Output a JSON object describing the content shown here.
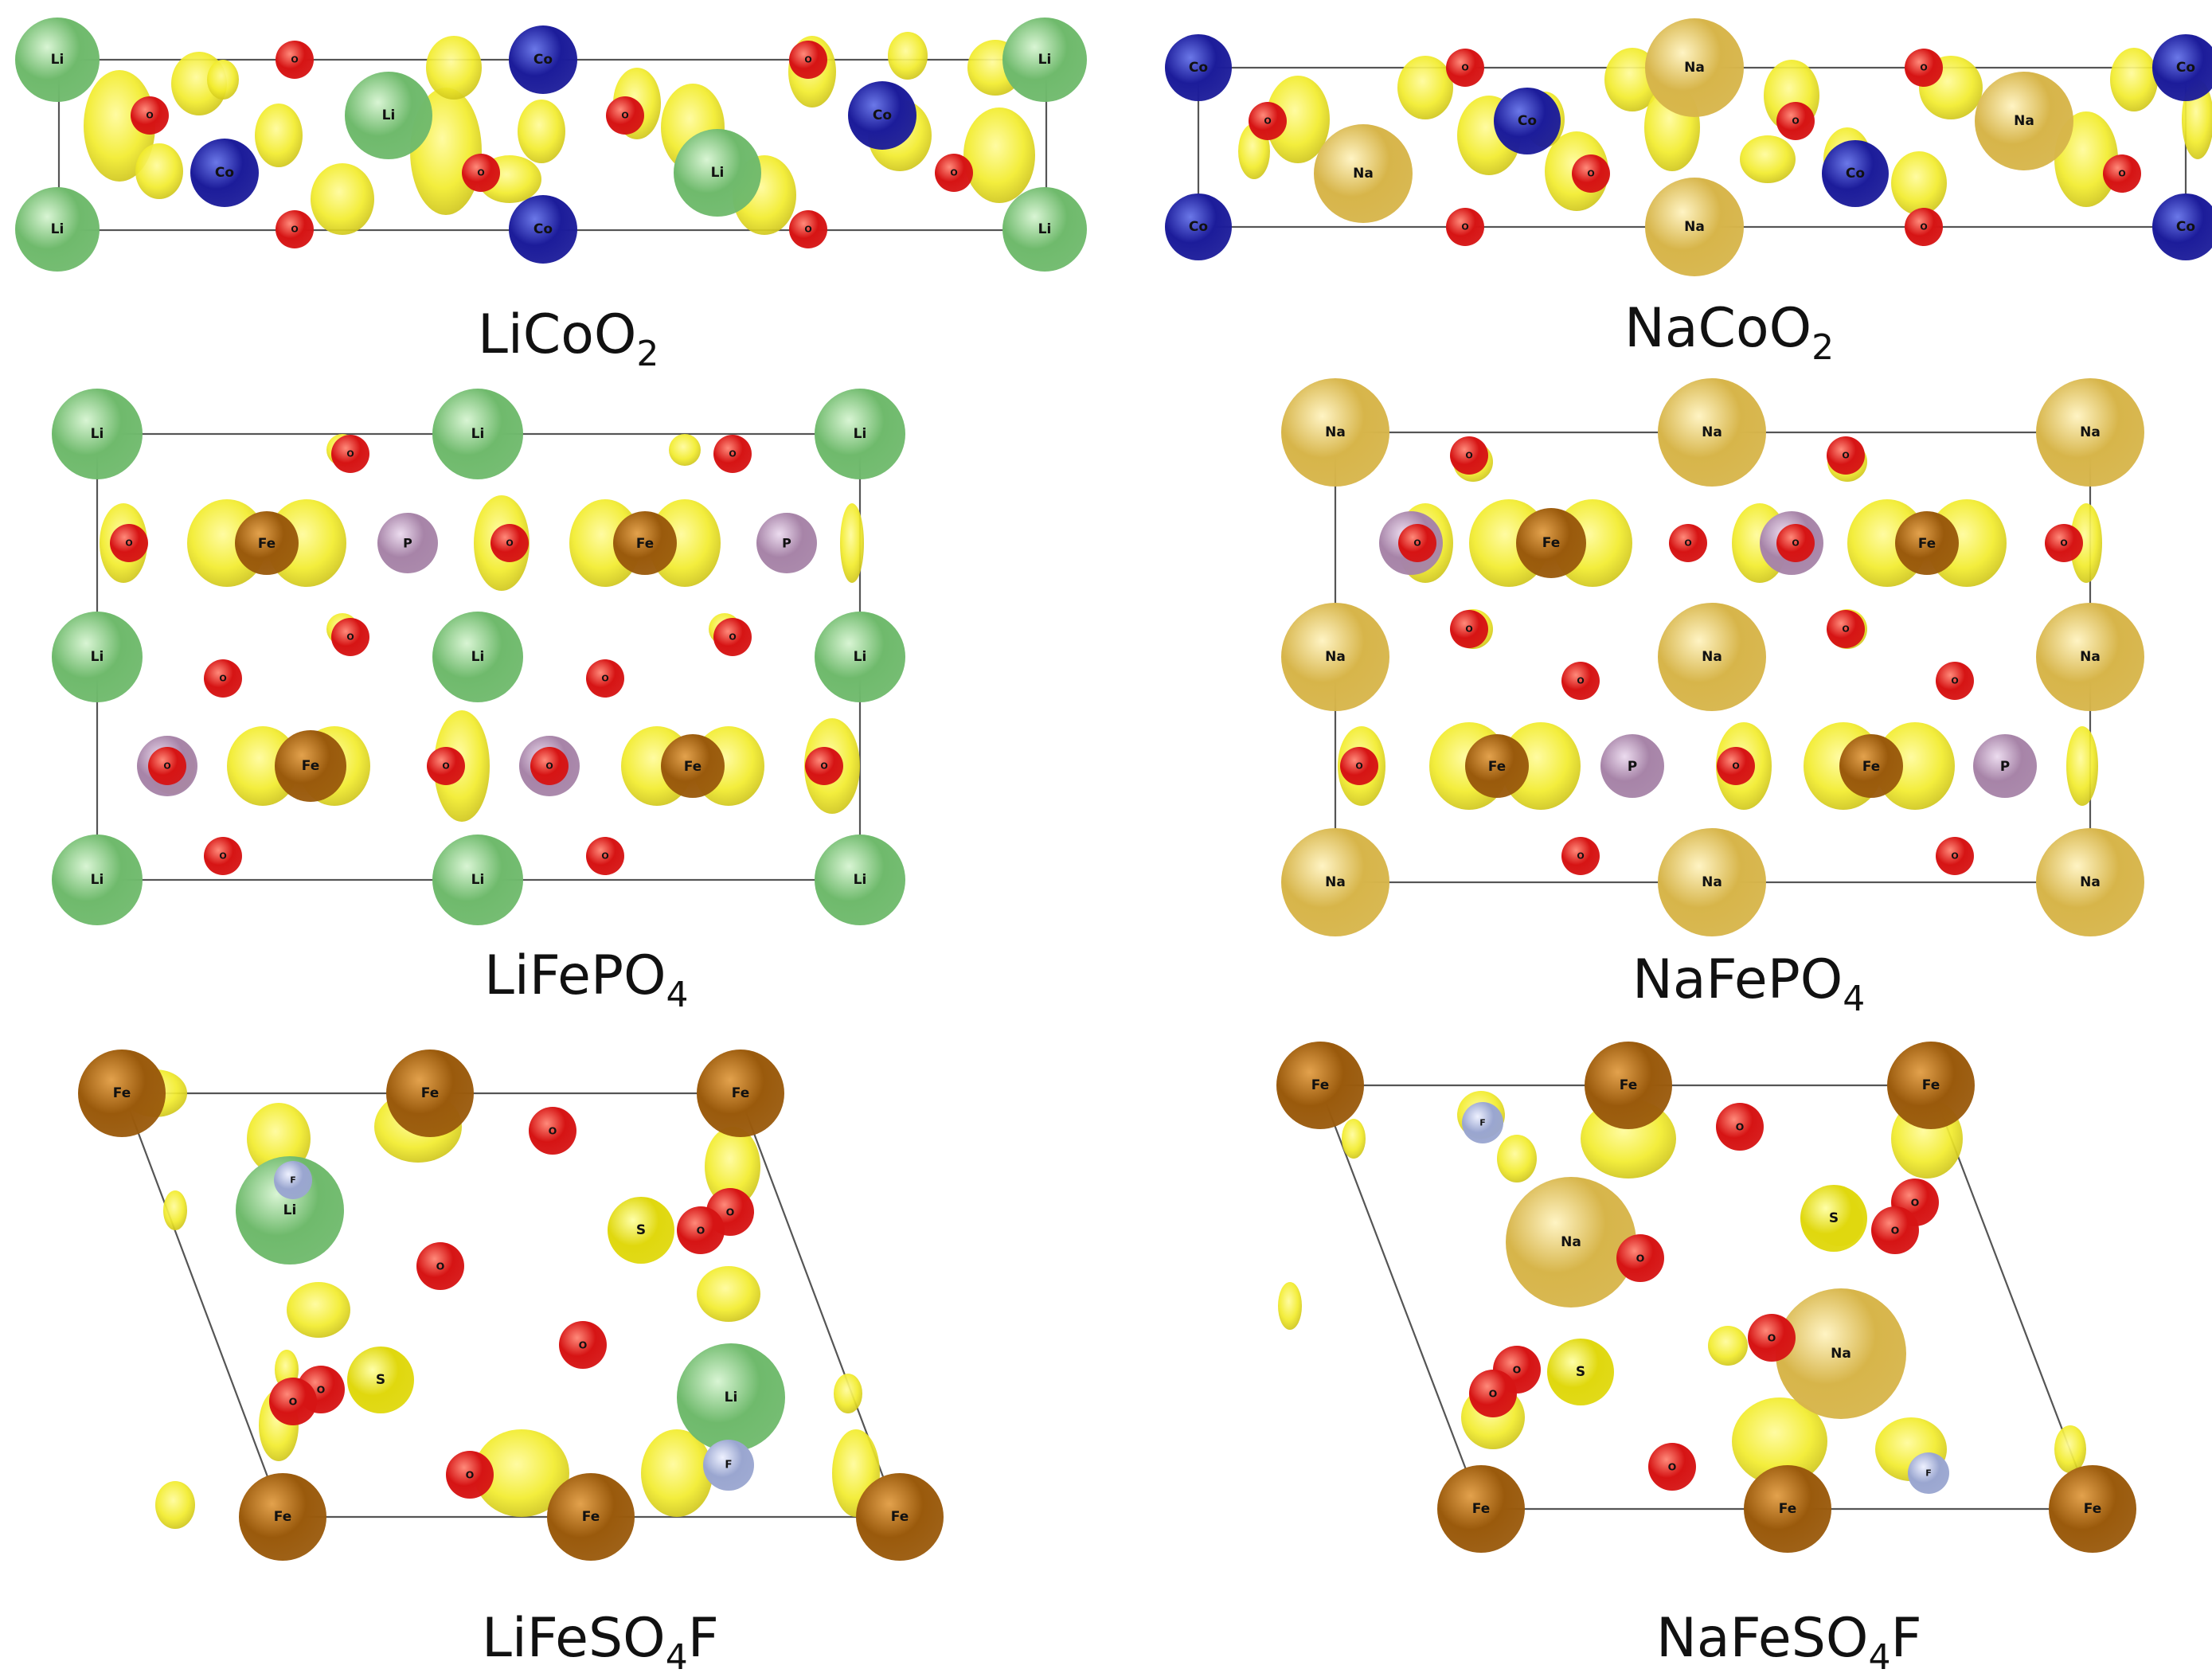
{
  "panels": [
    {
      "id": "licoo2",
      "formula": {
        "base": "LiCoO",
        "sub": "2",
        "tail": ""
      }
    },
    {
      "id": "nacoo2",
      "formula": {
        "base": "NaCoO",
        "sub": "2",
        "tail": ""
      }
    },
    {
      "id": "lifepo4",
      "formula": {
        "base": "LiFePO",
        "sub": "4",
        "tail": ""
      }
    },
    {
      "id": "nafepo4",
      "formula": {
        "base": "NaFePO",
        "sub": "4",
        "tail": ""
      }
    },
    {
      "id": "lifeso4f",
      "formula": {
        "base": "LiFeSO",
        "sub": "4",
        "tail": "F"
      }
    },
    {
      "id": "nafeso4f",
      "formula": {
        "base": "NaFeSO",
        "sub": "4",
        "tail": "F"
      }
    }
  ],
  "atoms": {
    "Li": {
      "label": "Li",
      "color": "#6fba6c",
      "light": "#d9f5d4"
    },
    "Na": {
      "label": "Na",
      "color": "#d7b54a",
      "light": "#fff4c4"
    },
    "Co": {
      "label": "Co",
      "color": "#1c1c9a",
      "light": "#6b78e8"
    },
    "O": {
      "label": "O",
      "color": "#d61414",
      "light": "#ff8a7a"
    },
    "Fe": {
      "label": "Fe",
      "color": "#9a5a0c",
      "light": "#e3a24d"
    },
    "P": {
      "label": "P",
      "color": "#a784a8",
      "light": "#ecdcef"
    },
    "S": {
      "label": "S",
      "color": "#e0d80e",
      "light": "#ffffa8"
    },
    "F": {
      "label": "F",
      "color": "#9aa6d0",
      "light": "#eef1ff"
    }
  },
  "isosurface_color": "#f2ec2c"
}
